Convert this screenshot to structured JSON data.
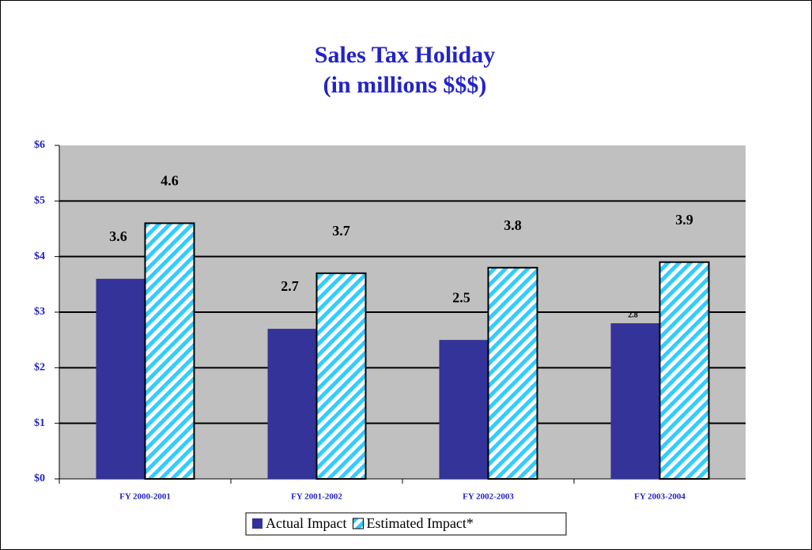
{
  "chart_data": {
    "type": "bar",
    "title": "Sales Tax Holiday",
    "subtitle": "(in millions $$$)",
    "categories": [
      "FY 2000-2001",
      "FY 2001-2002",
      "FY 2002-2003",
      "FY 2003-2004"
    ],
    "series": [
      {
        "name": "Actual Impact",
        "color": "#333399",
        "values": [
          3.6,
          2.7,
          2.5,
          2.8
        ]
      },
      {
        "name": "Estimated Impact*",
        "color": "#33ccff",
        "values": [
          4.6,
          3.7,
          3.8,
          3.9
        ]
      }
    ],
    "ylim": [
      0,
      6
    ],
    "yticks": [
      {
        "value": 0,
        "label": "$0"
      },
      {
        "value": 1,
        "label": "$1"
      },
      {
        "value": 2,
        "label": "$2"
      },
      {
        "value": 3,
        "label": "$3"
      },
      {
        "value": 4,
        "label": "$4"
      },
      {
        "value": 5,
        "label": "$5"
      },
      {
        "value": 6,
        "label": "$6"
      }
    ],
    "grid": true,
    "legend": "bottom"
  }
}
